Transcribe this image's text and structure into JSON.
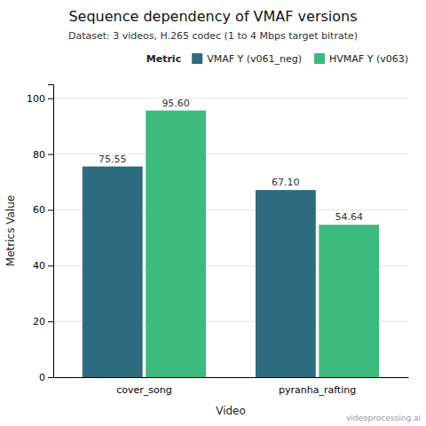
{
  "chart_data": {
    "type": "bar",
    "title": "Sequence dependency of VMAF versions",
    "subtitle": "Dataset: 3 videos, H.265 codec (1 to 4 Mbps target bitrate)",
    "xlabel": "Video",
    "ylabel": "Metrics Value",
    "categories": [
      "cover_song",
      "pyranha_rafting"
    ],
    "series": [
      {
        "name": "VMAF Y (v061_neg)",
        "color": "#2d6b7f",
        "values": [
          75.55,
          67.1
        ],
        "value_labels": [
          "75.55",
          "67.10"
        ]
      },
      {
        "name": "HVMAF Y (v063)",
        "color": "#3dba7e",
        "values": [
          95.6,
          54.64
        ],
        "value_labels": [
          "95.60",
          "54.64"
        ]
      }
    ],
    "legend_title": "Metric",
    "legend": "upper right",
    "ylim": [
      0,
      105
    ],
    "yticks": [
      0,
      20,
      40,
      60,
      80,
      100
    ],
    "grid": true,
    "data_labels": true,
    "annotations": [
      "videoprocessing.ai"
    ]
  }
}
